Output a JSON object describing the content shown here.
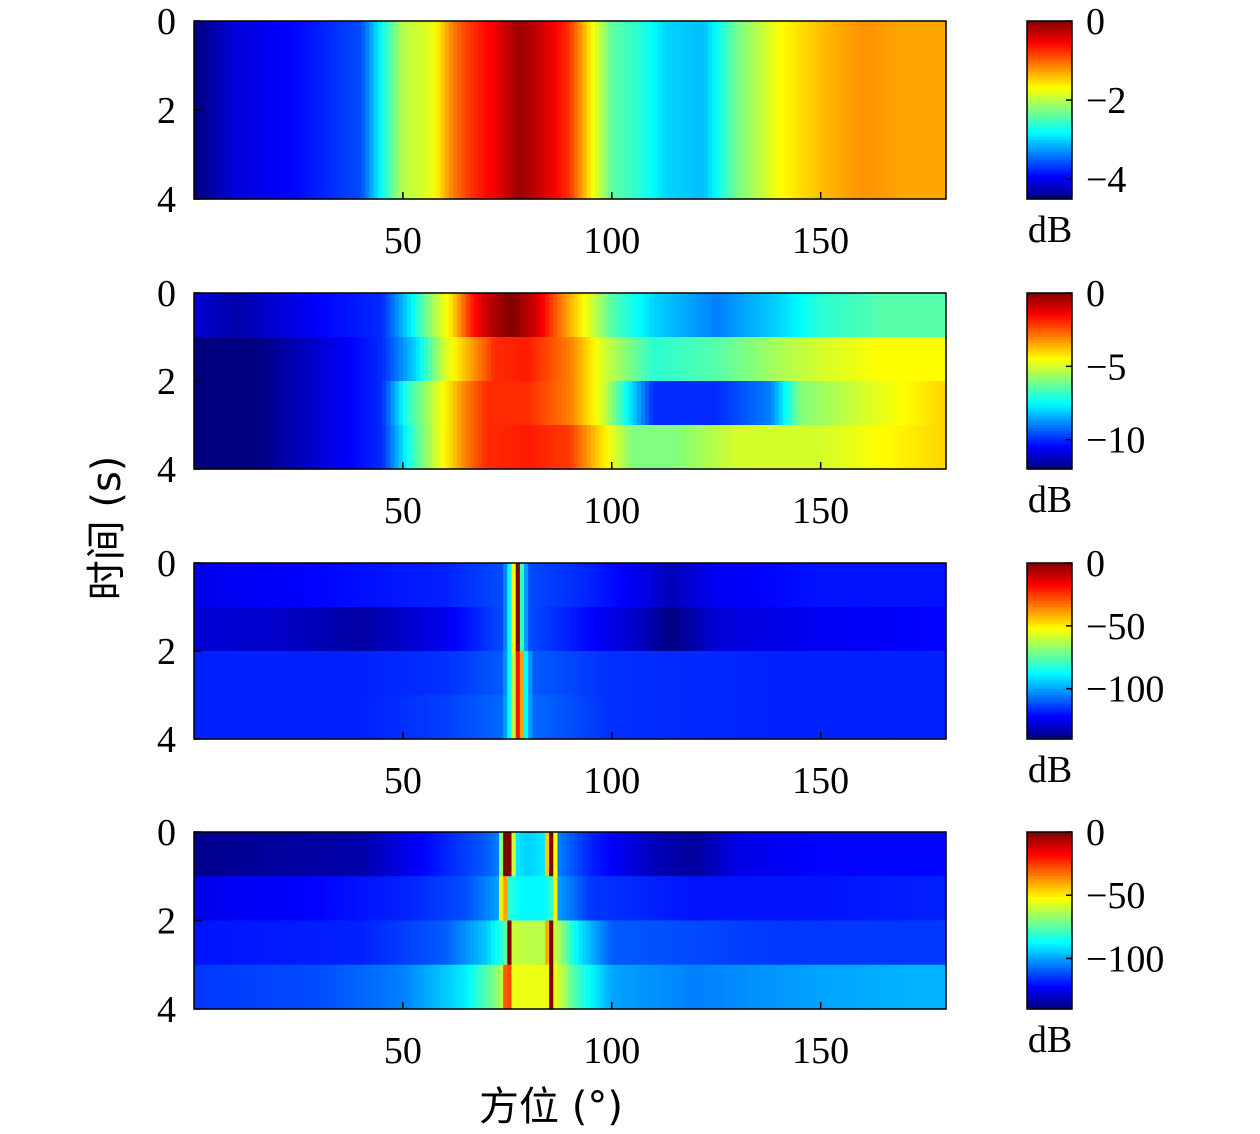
{
  "figure": {
    "ylabel": "时间 (s)",
    "xlabel": "方位 (°)"
  },
  "chart_data": [
    {
      "type": "heatmap",
      "xlim": [
        0,
        180
      ],
      "ylim": [
        0,
        4
      ],
      "xticks": [
        "50",
        "100",
        "150"
      ],
      "yticks": [
        "0",
        "2",
        "4"
      ],
      "colorbar": {
        "label": "dB",
        "min": -4.5,
        "max": 0,
        "ticks": [
          "0",
          "−2",
          "−4"
        ],
        "tick_values": [
          0,
          -2,
          -4
        ]
      },
      "rows": [
        [
          [
            0,
            -4.5
          ],
          [
            10,
            -4.1
          ],
          [
            25,
            -3.9
          ],
          [
            40,
            -3.6
          ],
          [
            46,
            -2.6
          ],
          [
            50,
            -2.0
          ],
          [
            57,
            -1.8
          ],
          [
            62,
            -1.1
          ],
          [
            66,
            -0.8
          ],
          [
            72,
            -0.5
          ],
          [
            78,
            -0.1
          ],
          [
            84,
            -0.4
          ],
          [
            90,
            -0.8
          ],
          [
            96,
            -1.8
          ],
          [
            100,
            -2.4
          ],
          [
            106,
            -2.6
          ],
          [
            113,
            -3.0
          ],
          [
            122,
            -3.1
          ],
          [
            130,
            -2.3
          ],
          [
            140,
            -1.7
          ],
          [
            150,
            -1.4
          ],
          [
            160,
            -1.2
          ],
          [
            170,
            -1.3
          ],
          [
            180,
            -1.3
          ]
        ],
        [
          [
            0,
            -4.5
          ],
          [
            10,
            -4.1
          ],
          [
            25,
            -3.9
          ],
          [
            40,
            -3.6
          ],
          [
            46,
            -2.6
          ],
          [
            50,
            -2.0
          ],
          [
            57,
            -1.8
          ],
          [
            62,
            -1.1
          ],
          [
            66,
            -0.8
          ],
          [
            72,
            -0.5
          ],
          [
            78,
            -0.1
          ],
          [
            84,
            -0.4
          ],
          [
            90,
            -0.8
          ],
          [
            96,
            -1.8
          ],
          [
            100,
            -2.4
          ],
          [
            106,
            -2.6
          ],
          [
            113,
            -3.0
          ],
          [
            122,
            -3.1
          ],
          [
            130,
            -2.3
          ],
          [
            140,
            -1.7
          ],
          [
            150,
            -1.4
          ],
          [
            160,
            -1.2
          ],
          [
            170,
            -1.3
          ],
          [
            180,
            -1.3
          ]
        ],
        [
          [
            0,
            -4.5
          ],
          [
            10,
            -4.1
          ],
          [
            25,
            -3.9
          ],
          [
            40,
            -3.6
          ],
          [
            46,
            -2.6
          ],
          [
            50,
            -2.0
          ],
          [
            57,
            -1.8
          ],
          [
            62,
            -1.1
          ],
          [
            66,
            -0.8
          ],
          [
            72,
            -0.5
          ],
          [
            78,
            -0.1
          ],
          [
            84,
            -0.4
          ],
          [
            90,
            -0.8
          ],
          [
            96,
            -1.8
          ],
          [
            100,
            -2.4
          ],
          [
            106,
            -2.6
          ],
          [
            113,
            -3.0
          ],
          [
            122,
            -3.1
          ],
          [
            130,
            -2.3
          ],
          [
            140,
            -1.7
          ],
          [
            150,
            -1.4
          ],
          [
            160,
            -1.2
          ],
          [
            170,
            -1.3
          ],
          [
            180,
            -1.3
          ]
        ],
        [
          [
            0,
            -4.5
          ],
          [
            10,
            -4.1
          ],
          [
            25,
            -3.9
          ],
          [
            40,
            -3.6
          ],
          [
            46,
            -2.6
          ],
          [
            50,
            -2.0
          ],
          [
            57,
            -1.8
          ],
          [
            62,
            -1.1
          ],
          [
            66,
            -0.8
          ],
          [
            72,
            -0.5
          ],
          [
            78,
            -0.1
          ],
          [
            84,
            -0.4
          ],
          [
            90,
            -0.8
          ],
          [
            96,
            -1.8
          ],
          [
            100,
            -2.4
          ],
          [
            106,
            -2.6
          ],
          [
            113,
            -3.0
          ],
          [
            122,
            -3.1
          ],
          [
            130,
            -2.3
          ],
          [
            140,
            -1.7
          ],
          [
            150,
            -1.4
          ],
          [
            160,
            -1.2
          ],
          [
            170,
            -1.3
          ],
          [
            180,
            -1.3
          ]
        ]
      ]
    },
    {
      "type": "heatmap",
      "xlim": [
        0,
        180
      ],
      "ylim": [
        0,
        4
      ],
      "xticks": [
        "50",
        "100",
        "150"
      ],
      "yticks": [
        "0",
        "2",
        "4"
      ],
      "colorbar": {
        "label": "dB",
        "min": -12,
        "max": 0,
        "ticks": [
          "0",
          "−5",
          "−10"
        ],
        "tick_values": [
          0,
          -5,
          -10
        ]
      },
      "rows": [
        [
          [
            0,
            -11
          ],
          [
            10,
            -11.5
          ],
          [
            30,
            -10.5
          ],
          [
            45,
            -10
          ],
          [
            51,
            -8
          ],
          [
            56,
            -6
          ],
          [
            62,
            -4
          ],
          [
            66,
            -2
          ],
          [
            70,
            -0.8
          ],
          [
            76,
            0
          ],
          [
            82,
            -1
          ],
          [
            88,
            -3
          ],
          [
            95,
            -5
          ],
          [
            100,
            -6.5
          ],
          [
            110,
            -8
          ],
          [
            125,
            -9
          ],
          [
            140,
            -8
          ],
          [
            150,
            -7
          ],
          [
            165,
            -6.5
          ],
          [
            180,
            -6.5
          ]
        ],
        [
          [
            0,
            -12
          ],
          [
            15,
            -12
          ],
          [
            30,
            -11
          ],
          [
            45,
            -10
          ],
          [
            53,
            -8
          ],
          [
            60,
            -5
          ],
          [
            68,
            -3
          ],
          [
            72,
            -2
          ],
          [
            80,
            -1.8
          ],
          [
            90,
            -3
          ],
          [
            98,
            -5
          ],
          [
            110,
            -7
          ],
          [
            125,
            -6.5
          ],
          [
            140,
            -5.5
          ],
          [
            150,
            -5
          ],
          [
            165,
            -4.5
          ],
          [
            180,
            -4.5
          ]
        ],
        [
          [
            0,
            -12
          ],
          [
            15,
            -12
          ],
          [
            30,
            -11
          ],
          [
            45,
            -10
          ],
          [
            51,
            -7
          ],
          [
            58,
            -5
          ],
          [
            65,
            -3
          ],
          [
            70,
            -2
          ],
          [
            80,
            -2
          ],
          [
            90,
            -3
          ],
          [
            98,
            -5
          ],
          [
            105,
            -8
          ],
          [
            110,
            -10
          ],
          [
            125,
            -10
          ],
          [
            138,
            -9
          ],
          [
            145,
            -6
          ],
          [
            160,
            -5
          ],
          [
            180,
            -4
          ]
        ],
        [
          [
            0,
            -12
          ],
          [
            15,
            -12
          ],
          [
            30,
            -11
          ],
          [
            45,
            -10
          ],
          [
            52,
            -7
          ],
          [
            58,
            -5
          ],
          [
            65,
            -3
          ],
          [
            70,
            -2
          ],
          [
            80,
            -1.8
          ],
          [
            90,
            -2.2
          ],
          [
            97,
            -4
          ],
          [
            105,
            -6
          ],
          [
            115,
            -6
          ],
          [
            130,
            -5
          ],
          [
            150,
            -5
          ],
          [
            165,
            -4.5
          ],
          [
            180,
            -4
          ]
        ]
      ]
    },
    {
      "type": "heatmap",
      "xlim": [
        0,
        180
      ],
      "ylim": [
        0,
        4
      ],
      "xticks": [
        "50",
        "100",
        "150"
      ],
      "yticks": [
        "0",
        "2",
        "4"
      ],
      "colorbar": {
        "label": "dB",
        "min": -140,
        "max": 0,
        "ticks": [
          "0",
          "−50",
          "−100"
        ],
        "tick_values": [
          0,
          -50,
          -100
        ]
      },
      "rows": [
        [
          [
            0,
            -125
          ],
          [
            30,
            -122
          ],
          [
            60,
            -118
          ],
          [
            74,
            -112
          ],
          [
            76,
            -80
          ],
          [
            77.5,
            0
          ],
          [
            78.5,
            -80
          ],
          [
            80,
            -112
          ],
          [
            95,
            -118
          ],
          [
            108,
            -126
          ],
          [
            114,
            -132
          ],
          [
            125,
            -124
          ],
          [
            150,
            -120
          ],
          [
            180,
            -120
          ]
        ],
        [
          [
            0,
            -128
          ],
          [
            20,
            -130
          ],
          [
            40,
            -135
          ],
          [
            60,
            -125
          ],
          [
            74,
            -112
          ],
          [
            76,
            -80
          ],
          [
            77.5,
            0
          ],
          [
            78.5,
            -80
          ],
          [
            80,
            -112
          ],
          [
            95,
            -122
          ],
          [
            108,
            -132
          ],
          [
            114,
            -140
          ],
          [
            125,
            -128
          ],
          [
            150,
            -124
          ],
          [
            180,
            -122
          ]
        ],
        [
          [
            0,
            -118
          ],
          [
            40,
            -118
          ],
          [
            60,
            -116
          ],
          [
            74,
            -110
          ],
          [
            76,
            -80
          ],
          [
            78,
            0
          ],
          [
            79,
            -80
          ],
          [
            81,
            -110
          ],
          [
            100,
            -116
          ],
          [
            140,
            -118
          ],
          [
            180,
            -118
          ]
        ],
        [
          [
            0,
            -118
          ],
          [
            40,
            -118
          ],
          [
            60,
            -114
          ],
          [
            74,
            -108
          ],
          [
            76,
            -80
          ],
          [
            78,
            0
          ],
          [
            79,
            -80
          ],
          [
            81,
            -108
          ],
          [
            100,
            -116
          ],
          [
            140,
            -118
          ],
          [
            180,
            -118
          ]
        ]
      ]
    },
    {
      "type": "heatmap",
      "xlim": [
        0,
        180
      ],
      "ylim": [
        0,
        4
      ],
      "xticks": [
        "50",
        "100",
        "150"
      ],
      "yticks": [
        "0",
        "2",
        "4"
      ],
      "colorbar": {
        "label": "dB",
        "min": -140,
        "max": 0,
        "ticks": [
          "0",
          "−50",
          "−100"
        ],
        "tick_values": [
          0,
          -50,
          -100
        ]
      },
      "rows": [
        [
          [
            0,
            -138
          ],
          [
            20,
            -136
          ],
          [
            40,
            -134
          ],
          [
            55,
            -122
          ],
          [
            70,
            -110
          ],
          [
            73,
            -105
          ],
          [
            74.5,
            0
          ],
          [
            75.5,
            0
          ],
          [
            77,
            -90
          ],
          [
            80,
            -94
          ],
          [
            84,
            -90
          ],
          [
            85,
            0
          ],
          [
            86,
            0
          ],
          [
            87,
            -105
          ],
          [
            95,
            -118
          ],
          [
            110,
            -132
          ],
          [
            120,
            -136
          ],
          [
            130,
            -126
          ],
          [
            150,
            -122
          ],
          [
            180,
            -122
          ]
        ],
        [
          [
            0,
            -125
          ],
          [
            30,
            -122
          ],
          [
            50,
            -118
          ],
          [
            65,
            -112
          ],
          [
            73,
            -100
          ],
          [
            74,
            0
          ],
          [
            75,
            -80
          ],
          [
            78,
            -88
          ],
          [
            84,
            -88
          ],
          [
            85.5,
            -80
          ],
          [
            86,
            0
          ],
          [
            87,
            -100
          ],
          [
            95,
            -115
          ],
          [
            120,
            -120
          ],
          [
            150,
            -120
          ],
          [
            180,
            -118
          ]
        ],
        [
          [
            0,
            -120
          ],
          [
            40,
            -118
          ],
          [
            60,
            -110
          ],
          [
            70,
            -95
          ],
          [
            74,
            -80
          ],
          [
            75,
            -70
          ],
          [
            75.5,
            0
          ],
          [
            76.5,
            -60
          ],
          [
            80,
            -62
          ],
          [
            84,
            -62
          ],
          [
            85.5,
            0
          ],
          [
            86.5,
            -60
          ],
          [
            92,
            -90
          ],
          [
            100,
            -110
          ],
          [
            140,
            -115
          ],
          [
            180,
            -115
          ]
        ],
        [
          [
            0,
            -115
          ],
          [
            30,
            -112
          ],
          [
            50,
            -105
          ],
          [
            65,
            -90
          ],
          [
            72,
            -70
          ],
          [
            74,
            -60
          ],
          [
            75,
            0
          ],
          [
            76,
            -55
          ],
          [
            80,
            -55
          ],
          [
            84.5,
            -55
          ],
          [
            85.5,
            0
          ],
          [
            86.5,
            -55
          ],
          [
            92,
            -80
          ],
          [
            100,
            -100
          ],
          [
            120,
            -105
          ],
          [
            150,
            -100
          ],
          [
            170,
            -98
          ],
          [
            180,
            -98
          ]
        ]
      ]
    }
  ]
}
